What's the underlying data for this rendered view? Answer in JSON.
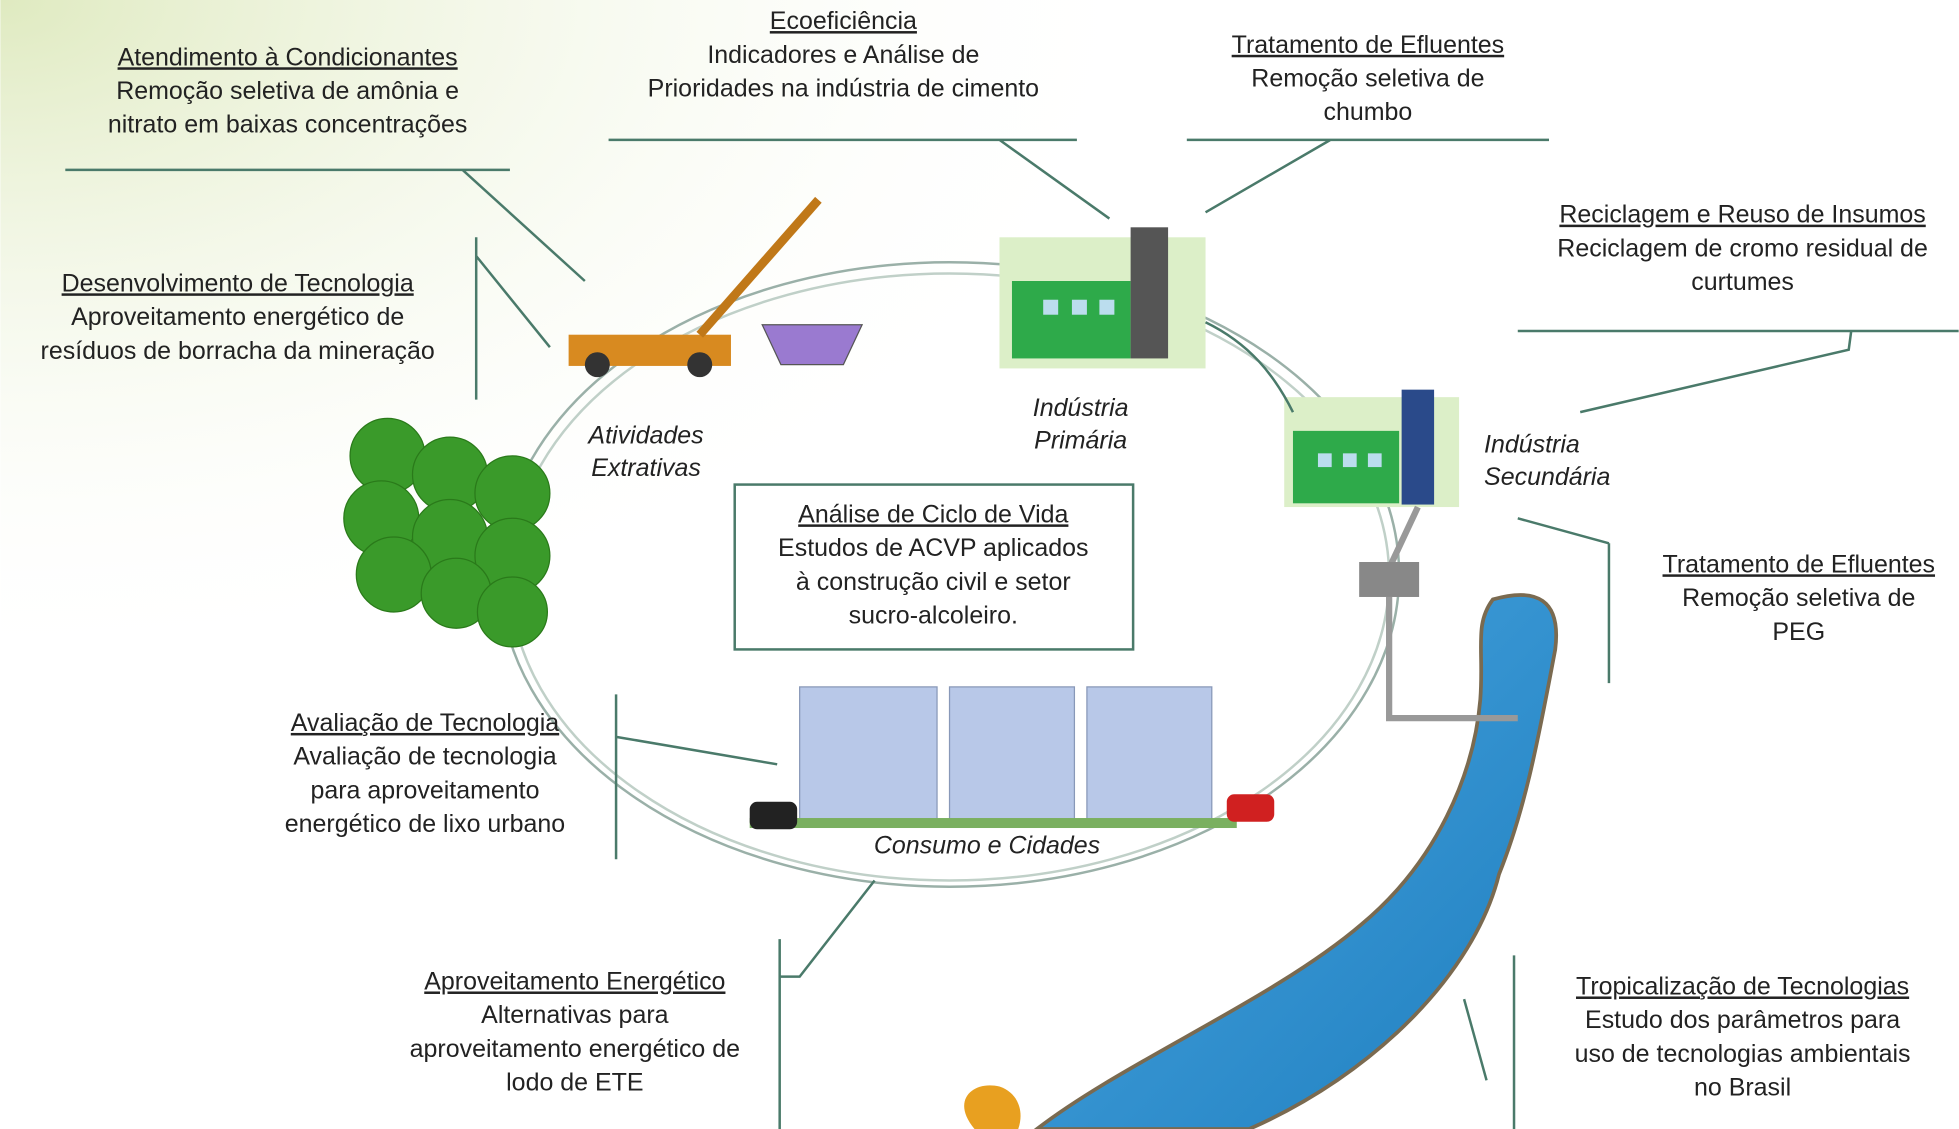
{
  "center": {
    "title": "Análise de Ciclo de Vida",
    "lines": [
      "Estudos de ACVP aplicados",
      "à construção civil e setor",
      "sucro-alcoleiro."
    ]
  },
  "stages": [
    [
      "Atividades",
      "Extrativas"
    ],
    [
      "Indústria",
      "Primária"
    ],
    [
      "Indústria",
      "Secundária"
    ],
    [
      "Consumo e Cidades"
    ]
  ],
  "callouts": [
    {
      "title": "Atendimento à Condicionantes",
      "lines": [
        "Remoção seletiva de amônia e",
        "nitrato em baixas concentrações"
      ]
    },
    {
      "title": "Ecoeficiência",
      "lines": [
        "Indicadores e Análise de",
        "Prioridades na indústria de cimento"
      ]
    },
    {
      "title": "Tratamento de Efluentes",
      "lines": [
        "Remoção seletiva de",
        "chumbo"
      ]
    },
    {
      "title": "Reciclagem e Reuso de Insumos",
      "lines": [
        "Reciclagem de cromo residual de",
        "curtumes"
      ]
    },
    {
      "title": "Desenvolvimento de Tecnologia",
      "lines": [
        "Aproveitamento energético de",
        "resíduos de borracha da mineração"
      ]
    },
    {
      "title": "Tratamento de Efluentes",
      "lines": [
        "Remoção seletiva de",
        "PEG"
      ]
    },
    {
      "title": "Avaliação de Tecnologia",
      "lines": [
        "Avaliação de tecnologia",
        "para aproveitamento",
        "energético de lixo urbano"
      ]
    },
    {
      "title": "Aproveitamento Energético",
      "lines": [
        "Alternativas para",
        "aproveitamento energético de",
        "lodo de ETE"
      ]
    },
    {
      "title": "Tropicalização de Tecnologias",
      "lines": [
        "Estudo dos parâmetros para",
        "uso de tecnologias ambientais",
        "no Brasil"
      ]
    }
  ]
}
